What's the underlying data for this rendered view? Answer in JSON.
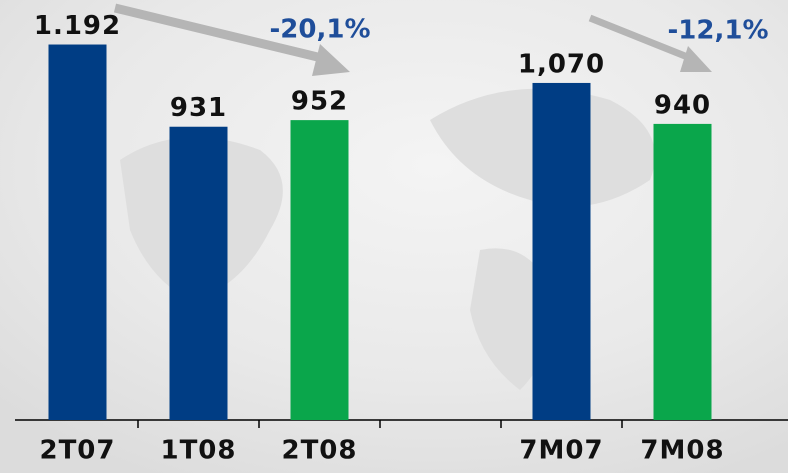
{
  "chart_data": {
    "type": "bar",
    "categories": [
      "2T07",
      "1T08",
      "2T08",
      null,
      "7M07",
      "7M08"
    ],
    "values": [
      1192,
      931,
      952,
      null,
      1070,
      940
    ],
    "value_labels": [
      "1.192",
      "931",
      "952",
      null,
      "1,070",
      "940"
    ],
    "colors": [
      "#003d84",
      "#003d84",
      "#0aa64b",
      null,
      "#003d84",
      "#0aa64b"
    ],
    "ylim": [
      0,
      1200
    ],
    "annotations": [
      "-20,1%",
      "-12,1%"
    ]
  }
}
